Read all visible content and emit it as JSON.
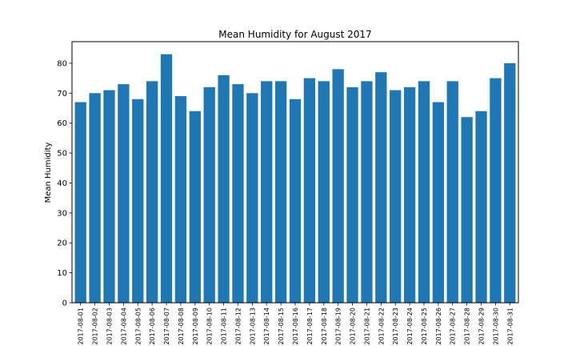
{
  "chart_data": {
    "type": "bar",
    "title": "Mean Humidity for August 2017",
    "xlabel": "",
    "ylabel": "Mean Humidity",
    "ylim": [
      0,
      87.2
    ],
    "yticks": [
      0,
      10,
      20,
      30,
      40,
      50,
      60,
      70,
      80
    ],
    "grid": false,
    "legend": "none",
    "bar_color": "#1f77b4",
    "categories": [
      "2017-08-01",
      "2017-08-02",
      "2017-08-03",
      "2017-08-04",
      "2017-08-05",
      "2017-08-06",
      "2017-08-07",
      "2017-08-08",
      "2017-08-09",
      "2017-08-10",
      "2017-08-11",
      "2017-08-12",
      "2017-08-13",
      "2017-08-14",
      "2017-08-15",
      "2017-08-16",
      "2017-08-17",
      "2017-08-18",
      "2017-08-19",
      "2017-08-20",
      "2017-08-21",
      "2017-08-22",
      "2017-08-23",
      "2017-08-24",
      "2017-08-25",
      "2017-08-26",
      "2017-08-27",
      "2017-08-28",
      "2017-08-29",
      "2017-08-30",
      "2017-08-31"
    ],
    "values": [
      67,
      70,
      71,
      73,
      68,
      74,
      83,
      69,
      64,
      72,
      76,
      73,
      70,
      74,
      74,
      68,
      75,
      74,
      78,
      72,
      74,
      77,
      71,
      72,
      74,
      67,
      74,
      62,
      64,
      75,
      80
    ]
  }
}
